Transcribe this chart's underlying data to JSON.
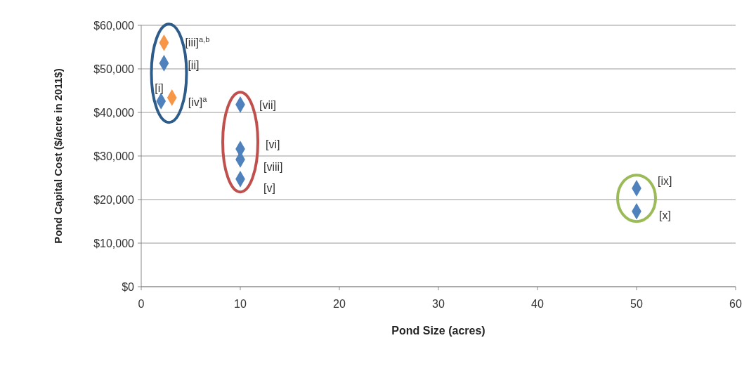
{
  "chart_data": {
    "type": "scatter",
    "xlabel": "Pond Size (acres)",
    "ylabel": "Pond Capital Cost ($/acre in 2011$)",
    "xlim": [
      0,
      60
    ],
    "xticks": [
      0,
      10,
      20,
      30,
      40,
      50,
      60
    ],
    "ylim": [
      0,
      60000
    ],
    "yticks": [
      {
        "value": 0,
        "label": "$0"
      },
      {
        "value": 10000,
        "label": "$10,000"
      },
      {
        "value": 20000,
        "label": "$20,000"
      },
      {
        "value": 30000,
        "label": "$30,000"
      },
      {
        "value": 40000,
        "label": "$40,000"
      },
      {
        "value": 50000,
        "label": "$50,000"
      },
      {
        "value": 60000,
        "label": "$60,000"
      }
    ],
    "grid": "y",
    "marker": "diamond",
    "series": [
      {
        "color": "#4f81bd",
        "x": [
          2,
          2.3,
          10,
          10,
          10,
          10,
          50,
          50
        ],
        "values": [
          42600,
          51300,
          24700,
          31600,
          41800,
          29200,
          22600,
          17300
        ]
      },
      {
        "color": "#f79646",
        "x": [
          2.3,
          3.1
        ],
        "values": [
          56000,
          43400
        ]
      }
    ],
    "annotations": [
      {
        "text": "[i]",
        "x": 2,
        "y": 42600
      },
      {
        "text": "[ii]",
        "x": 2.3,
        "y": 51300
      },
      {
        "text": "[iii]$^{a,b}$",
        "x": 2.3,
        "y": 56000
      },
      {
        "text": "[iv]$^{a}$",
        "x": 3.1,
        "y": 43400
      },
      {
        "text": "[v]",
        "x": 10,
        "y": 24700
      },
      {
        "text": "[vi]",
        "x": 10,
        "y": 31600
      },
      {
        "text": "[vii]",
        "x": 10,
        "y": 41800
      },
      {
        "text": "[viii]",
        "x": 10,
        "y": 29200
      },
      {
        "text": "[ix]",
        "x": 50,
        "y": 22600
      },
      {
        "text": "[x]",
        "x": 50,
        "y": 17300
      }
    ]
  }
}
